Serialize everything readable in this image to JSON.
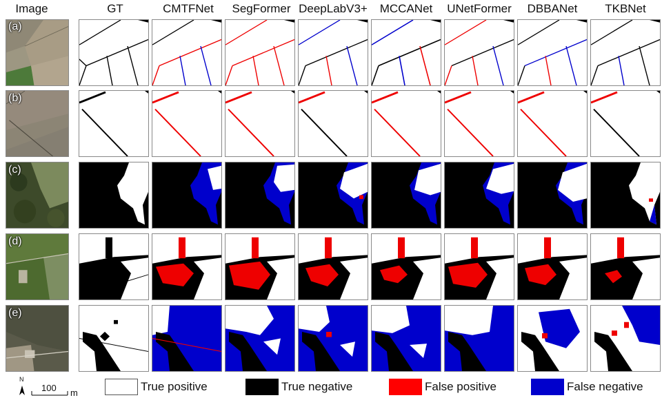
{
  "columns": [
    "Image",
    "GT",
    "CMTFNet",
    "SegFormer",
    "DeepLabV3+",
    "MCCANet",
    "UNetFormer",
    "DBBANet",
    "TKBNet"
  ],
  "rows": [
    "(a)",
    "(b)",
    "(c)",
    "(d)",
    "(e)"
  ],
  "legend": [
    {
      "label": "True positive",
      "color": "#ffffff"
    },
    {
      "label": "True negative",
      "color": "#000000"
    },
    {
      "label": "False positive",
      "color": "#ff0000"
    },
    {
      "label": "False negative",
      "color": "#0000cc"
    }
  ],
  "scalebar": {
    "north": "N",
    "value": "100",
    "unit": "m"
  }
}
